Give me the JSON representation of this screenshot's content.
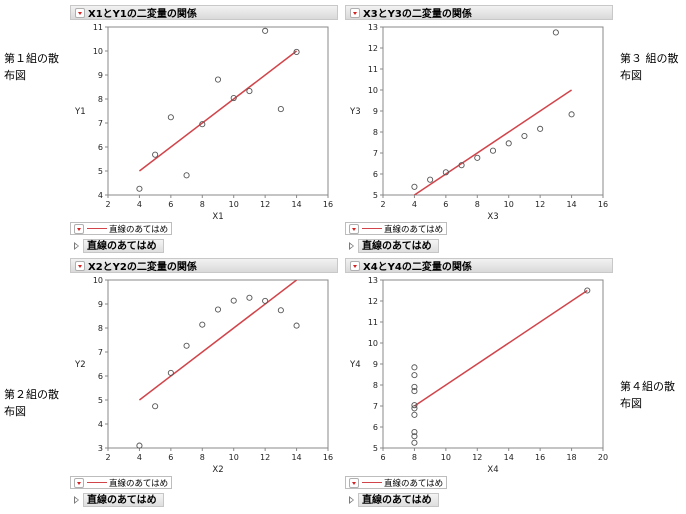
{
  "side_labels": {
    "group1": "第１組の散布図",
    "group2": "第２組の散布図",
    "group3": "第３ 組の散布図",
    "group4": "第４組の散布図"
  },
  "legend_label": "直線のあてはめ",
  "fit_outline_label": "直線のあてはめ",
  "colors": {
    "points": "#555555",
    "fit_line": "#d1444a",
    "axis": "#888888"
  },
  "panels": [
    {
      "title": "X1とY1の二変量の関係"
    },
    {
      "title": "X3とY3の二変量の関係"
    },
    {
      "title": "X2とY2の二変量の関係"
    },
    {
      "title": "X4とY4の二変量の関係"
    }
  ],
  "chart_data": [
    {
      "type": "scatter",
      "xlabel": "X1",
      "ylabel": "Y1",
      "xlim": [
        2,
        16
      ],
      "ylim": [
        4,
        11
      ],
      "xticks": [
        2,
        4,
        6,
        8,
        10,
        12,
        14,
        16
      ],
      "yticks": [
        4,
        5,
        6,
        7,
        8,
        9,
        10,
        11
      ],
      "x": [
        10,
        8,
        13,
        9,
        11,
        14,
        6,
        4,
        12,
        7,
        5
      ],
      "y": [
        8.04,
        6.95,
        7.58,
        8.81,
        8.33,
        9.96,
        7.24,
        4.26,
        10.84,
        4.82,
        5.68
      ],
      "fit": {
        "intercept": 3.0,
        "slope": 0.5,
        "x_range": [
          4,
          14
        ]
      }
    },
    {
      "type": "scatter",
      "xlabel": "X3",
      "ylabel": "Y3",
      "xlim": [
        2,
        16
      ],
      "ylim": [
        5,
        13
      ],
      "xticks": [
        2,
        4,
        6,
        8,
        10,
        12,
        14,
        16
      ],
      "yticks": [
        5,
        6,
        7,
        8,
        9,
        10,
        11,
        12,
        13
      ],
      "x": [
        10,
        8,
        13,
        9,
        11,
        14,
        6,
        4,
        12,
        7,
        5
      ],
      "y": [
        7.46,
        6.77,
        12.74,
        7.11,
        7.81,
        8.84,
        6.08,
        5.39,
        8.15,
        6.42,
        5.73
      ],
      "fit": {
        "intercept": 3.0,
        "slope": 0.5,
        "x_range": [
          4,
          14
        ]
      }
    },
    {
      "type": "scatter",
      "xlabel": "X2",
      "ylabel": "Y2",
      "xlim": [
        2,
        16
      ],
      "ylim": [
        3,
        10
      ],
      "xticks": [
        2,
        4,
        6,
        8,
        10,
        12,
        14,
        16
      ],
      "yticks": [
        3,
        4,
        5,
        6,
        7,
        8,
        9,
        10
      ],
      "x": [
        10,
        8,
        13,
        9,
        11,
        14,
        6,
        4,
        12,
        7,
        5
      ],
      "y": [
        9.14,
        8.14,
        8.74,
        8.77,
        9.26,
        8.1,
        6.13,
        3.1,
        9.13,
        7.26,
        4.74
      ],
      "fit": {
        "intercept": 3.0,
        "slope": 0.5,
        "x_range": [
          4,
          14
        ]
      }
    },
    {
      "type": "scatter",
      "xlabel": "X4",
      "ylabel": "Y4",
      "xlim": [
        6,
        20
      ],
      "ylim": [
        5,
        13
      ],
      "xticks": [
        6,
        8,
        10,
        12,
        14,
        16,
        18,
        20
      ],
      "yticks": [
        5,
        6,
        7,
        8,
        9,
        10,
        11,
        12,
        13
      ],
      "x": [
        8,
        8,
        8,
        8,
        8,
        8,
        8,
        19,
        8,
        8,
        8
      ],
      "y": [
        6.58,
        5.76,
        7.71,
        8.84,
        8.47,
        7.04,
        5.25,
        12.5,
        5.56,
        7.91,
        6.89
      ],
      "fit": {
        "intercept": 3.0,
        "slope": 0.5,
        "x_range": [
          8,
          19
        ]
      }
    }
  ]
}
